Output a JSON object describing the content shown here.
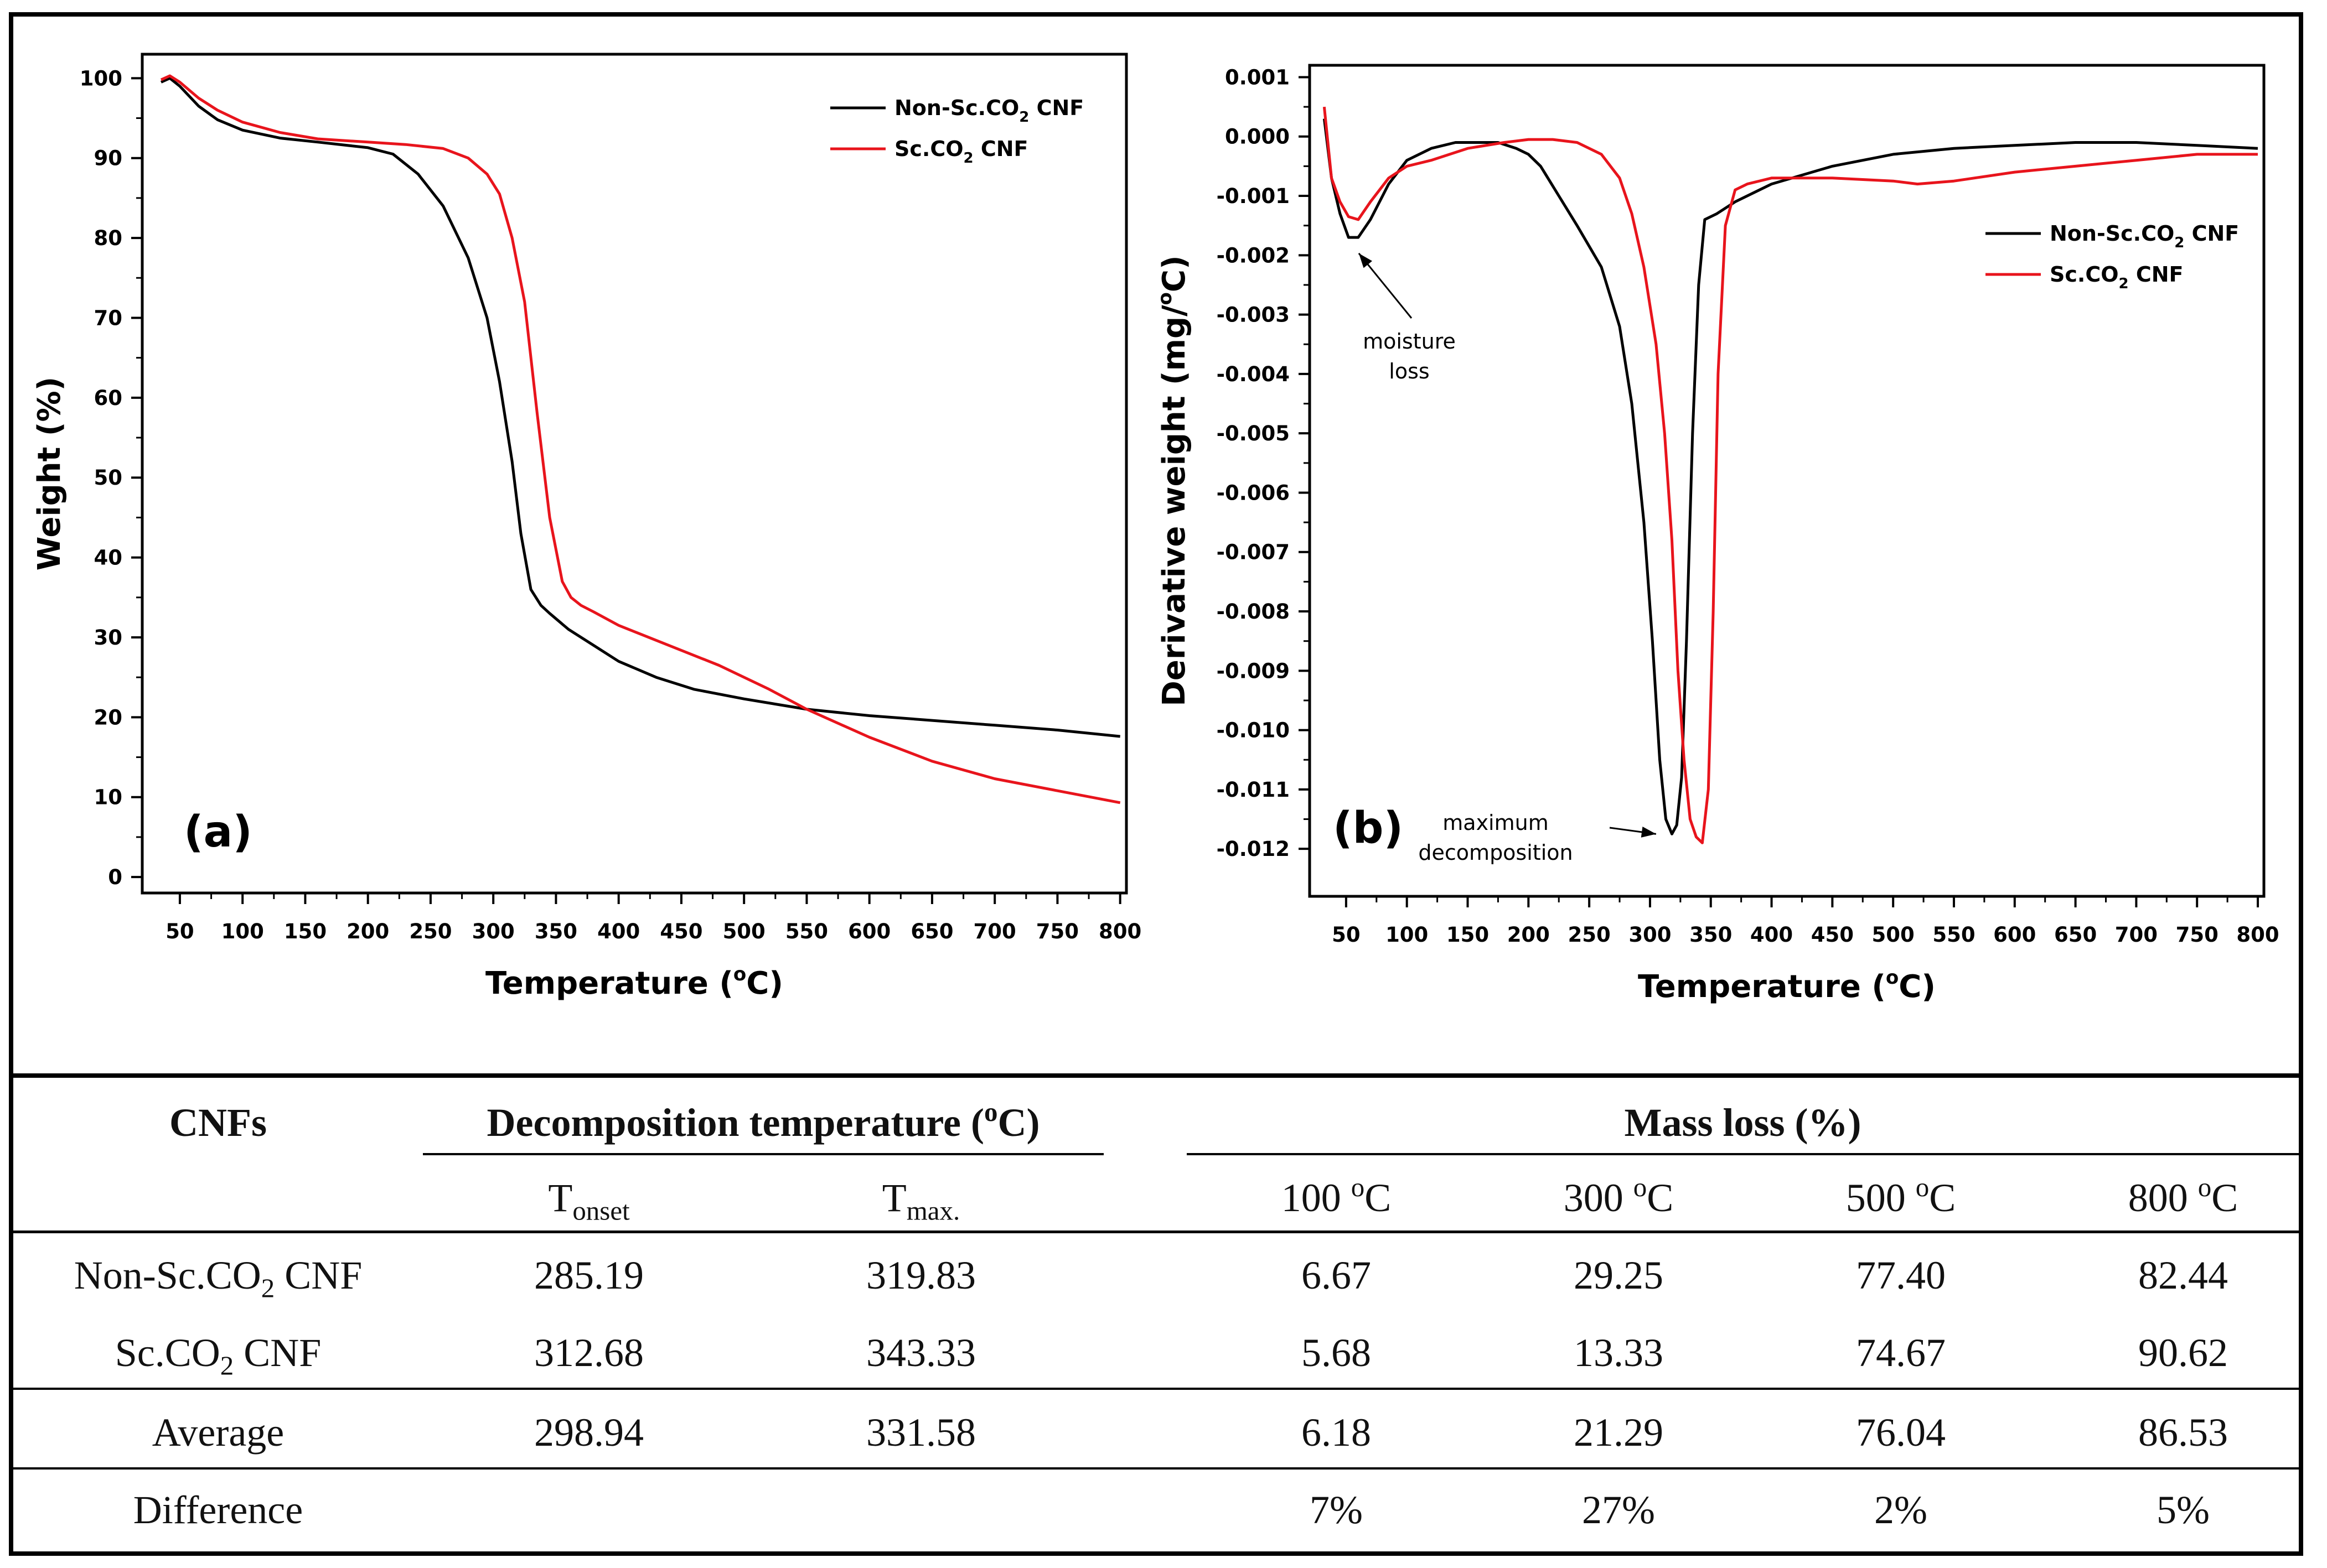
{
  "chart_data": [
    {
      "panel_label": "(a)",
      "type": "line",
      "xlabel": "Temperature (",
      "xlabel_unit": "C)",
      "xlabel_sup": "o",
      "ylabel": "Weight (%)",
      "xlim": [
        20,
        805
      ],
      "ylim": [
        -2,
        103
      ],
      "xticks": [
        50,
        100,
        150,
        200,
        250,
        300,
        350,
        400,
        450,
        500,
        550,
        600,
        650,
        700,
        750,
        800
      ],
      "yticks": [
        0,
        10,
        20,
        30,
        40,
        50,
        60,
        70,
        80,
        90,
        100
      ],
      "legend_position": "top-right",
      "series": [
        {
          "name": "Non-Sc.CO",
          "name_sub": "2",
          "name_tail": " CNF",
          "color": "#000000",
          "x": [
            35,
            42,
            50,
            65,
            80,
            100,
            130,
            160,
            200,
            220,
            240,
            260,
            280,
            295,
            305,
            315,
            322,
            330,
            338,
            345,
            360,
            380,
            400,
            430,
            460,
            500,
            550,
            600,
            650,
            700,
            750,
            800
          ],
          "y": [
            99.5,
            100,
            99,
            96.5,
            94.8,
            93.5,
            92.5,
            92,
            91.3,
            90.5,
            88,
            84,
            77.5,
            70,
            62,
            52,
            43,
            36,
            34,
            33,
            31,
            29,
            27,
            25,
            23.5,
            22.3,
            21,
            20.2,
            19.6,
            19,
            18.4,
            17.6
          ]
        },
        {
          "name": "Sc.CO",
          "name_sub": "2",
          "name_tail": " CNF",
          "color": "#e8141c",
          "x": [
            35,
            42,
            50,
            65,
            80,
            100,
            130,
            160,
            200,
            230,
            260,
            280,
            295,
            305,
            315,
            325,
            335,
            345,
            355,
            362,
            370,
            380,
            400,
            440,
            480,
            520,
            550,
            600,
            650,
            700,
            750,
            800
          ],
          "y": [
            99.8,
            100.3,
            99.5,
            97.5,
            96,
            94.5,
            93.2,
            92.4,
            92,
            91.7,
            91.2,
            90,
            88,
            85.5,
            80,
            72,
            58,
            45,
            37,
            35,
            34,
            33.2,
            31.5,
            29,
            26.5,
            23.5,
            21,
            17.5,
            14.5,
            12.3,
            10.8,
            9.3
          ]
        }
      ]
    },
    {
      "panel_label": "(b)",
      "type": "line",
      "xlabel": "Temperature (",
      "xlabel_unit": "C)",
      "xlabel_sup": "o",
      "ylabel": "Derivative weight (mg/",
      "ylabel_unit": "C)",
      "ylabel_sup": "o",
      "xlim": [
        20,
        805
      ],
      "ylim": [
        -0.0128,
        0.0012
      ],
      "xticks": [
        50,
        100,
        150,
        200,
        250,
        300,
        350,
        400,
        450,
        500,
        550,
        600,
        650,
        700,
        750,
        800
      ],
      "yticks": [
        0.001,
        0.0,
        -0.001,
        -0.002,
        -0.003,
        -0.004,
        -0.005,
        -0.006,
        -0.007,
        -0.008,
        -0.009,
        -0.01,
        -0.011,
        -0.012
      ],
      "ytick_labels": [
        "0.001",
        "0.000",
        "-0.001",
        "-0.002",
        "-0.003",
        "-0.004",
        "-0.005",
        "-0.006",
        "-0.007",
        "-0.008",
        "-0.009",
        "-0.010",
        "-0.011",
        "-0.012"
      ],
      "legend_position": "top-right",
      "annotations": [
        {
          "text_lines": [
            "moisture",
            "loss"
          ],
          "x": 55,
          "y": -0.0018
        },
        {
          "text_lines": [
            "maximum",
            "decomposition"
          ],
          "x": 315,
          "y": -0.01175
        }
      ],
      "series": [
        {
          "name": "Non-Sc.CO",
          "name_sub": "2",
          "name_tail": " CNF",
          "color": "#000000",
          "x": [
            32,
            38,
            45,
            52,
            60,
            70,
            85,
            100,
            120,
            140,
            160,
            175,
            190,
            200,
            210,
            225,
            240,
            260,
            275,
            285,
            295,
            302,
            308,
            313,
            318,
            322,
            326,
            330,
            335,
            340,
            345,
            355,
            370,
            400,
            450,
            500,
            550,
            600,
            650,
            700,
            750,
            800
          ],
          "y": [
            0.0003,
            -0.0007,
            -0.0013,
            -0.0017,
            -0.0017,
            -0.0014,
            -0.0008,
            -0.0004,
            -0.0002,
            -0.0001,
            -0.0001,
            -0.0001,
            -0.0002,
            -0.0003,
            -0.0005,
            -0.001,
            -0.0015,
            -0.0022,
            -0.0032,
            -0.0045,
            -0.0065,
            -0.0085,
            -0.0105,
            -0.0115,
            -0.01175,
            -0.0116,
            -0.0108,
            -0.0085,
            -0.005,
            -0.0025,
            -0.0014,
            -0.0013,
            -0.0011,
            -0.0008,
            -0.0005,
            -0.0003,
            -0.0002,
            -0.00015,
            -0.0001,
            -0.0001,
            -0.00015,
            -0.0002
          ]
        },
        {
          "name": "Sc.CO",
          "name_sub": "2",
          "name_tail": " CNF",
          "color": "#e8141c",
          "x": [
            32,
            38,
            45,
            52,
            60,
            70,
            85,
            100,
            120,
            150,
            180,
            200,
            220,
            240,
            260,
            275,
            285,
            295,
            305,
            312,
            318,
            323,
            328,
            333,
            338,
            343,
            348,
            352,
            356,
            362,
            370,
            380,
            400,
            450,
            500,
            520,
            550,
            600,
            650,
            700,
            750,
            800
          ],
          "y": [
            0.0005,
            -0.0007,
            -0.0011,
            -0.00135,
            -0.0014,
            -0.0011,
            -0.0007,
            -0.0005,
            -0.0004,
            -0.0002,
            -0.0001,
            -5e-05,
            -5e-05,
            -0.0001,
            -0.0003,
            -0.0007,
            -0.0013,
            -0.0022,
            -0.0035,
            -0.005,
            -0.0068,
            -0.009,
            -0.0105,
            -0.0115,
            -0.0118,
            -0.0119,
            -0.011,
            -0.008,
            -0.004,
            -0.0015,
            -0.0009,
            -0.0008,
            -0.0007,
            -0.0007,
            -0.00075,
            -0.0008,
            -0.00075,
            -0.0006,
            -0.0005,
            -0.0004,
            -0.0003,
            -0.0003
          ]
        }
      ]
    }
  ],
  "table": {
    "header": {
      "cnfs": "CNFs",
      "decomp": "Decomposition temperature (",
      "decomp_sup": "o",
      "decomp_tail": "C)",
      "mass": "Mass loss (%)"
    },
    "subheader": {
      "tonset_main": "T",
      "tonset_sub": "onset",
      "tmax_main": "T",
      "tmax_sub": "max.",
      "t100": "100 ",
      "t300": "300 ",
      "t500": "500 ",
      "t800": "800 ",
      "deg_sup": "o",
      "deg_unit": "C"
    },
    "rows": [
      {
        "name": "Non-Sc.CO",
        "name_sub": "2",
        "name_tail": " CNF",
        "tonset": "285.19",
        "tmax": "319.83",
        "m100": "6.67",
        "m300": "29.25",
        "m500": "77.40",
        "m800": "82.44"
      },
      {
        "name": "Sc.CO",
        "name_sub": "2",
        "name_tail": " CNF",
        "tonset": "312.68",
        "tmax": "343.33",
        "m100": "5.68",
        "m300": "13.33",
        "m500": "74.67",
        "m800": "90.62"
      },
      {
        "name": "Average",
        "name_sub": "",
        "name_tail": "",
        "tonset": "298.94",
        "tmax": "331.58",
        "m100": "6.18",
        "m300": "21.29",
        "m500": "76.04",
        "m800": "86.53"
      },
      {
        "name": "Difference",
        "name_sub": "",
        "name_tail": "",
        "tonset": "",
        "tmax": "",
        "m100": "7%",
        "m300": "27%",
        "m500": "2%",
        "m800": "5%"
      }
    ]
  }
}
